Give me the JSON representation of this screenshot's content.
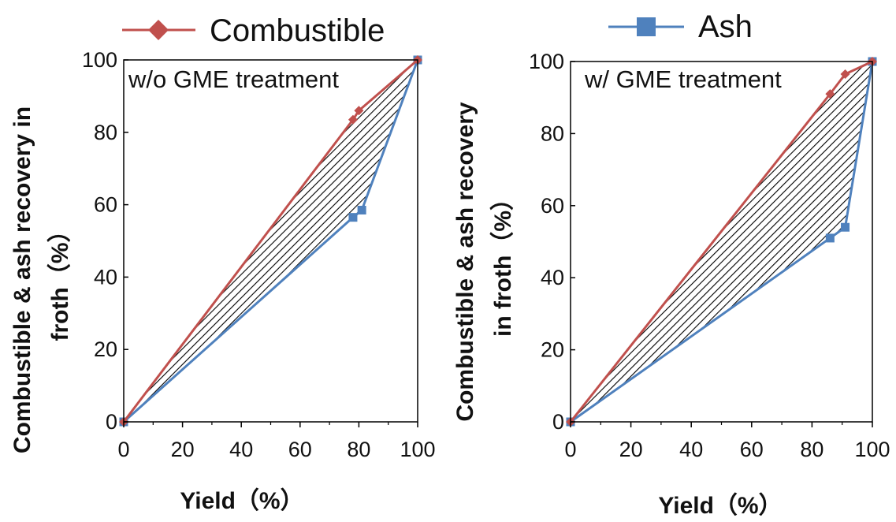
{
  "legend": {
    "combustible_label": "Combustible",
    "ash_label": "Ash"
  },
  "colors": {
    "combustible": "#c0504d",
    "ash": "#4f81bd",
    "axis": "#000000",
    "hatch": "#000000"
  },
  "chart_data": [
    {
      "type": "line",
      "panel_label": "w/o GME treatment",
      "xlabel": "Yield（%）",
      "ylabel_lines": [
        "Combustible & ash recovery in",
        "froth（%）"
      ],
      "xlim": [
        0,
        100
      ],
      "ylim": [
        0,
        100
      ],
      "xticks": [
        0,
        20,
        40,
        60,
        80,
        100
      ],
      "yticks": [
        0,
        20,
        40,
        60,
        80,
        100
      ],
      "grid": false,
      "area_between_series": "hatched",
      "series": [
        {
          "name": "Combustible",
          "marker": "diamond",
          "x": [
            0,
            78,
            80,
            100
          ],
          "y": [
            0,
            83.5,
            86,
            100
          ]
        },
        {
          "name": "Ash",
          "marker": "square",
          "x": [
            0,
            78,
            81,
            100
          ],
          "y": [
            0,
            56.5,
            58.5,
            100
          ]
        }
      ]
    },
    {
      "type": "line",
      "panel_label": "w/ GME treatment",
      "xlabel": "Yield（%）",
      "ylabel_lines": [
        "Combustible & ash recovery",
        "in froth（%）"
      ],
      "xlim": [
        0,
        100
      ],
      "ylim": [
        0,
        100
      ],
      "xticks": [
        0,
        20,
        40,
        60,
        80,
        100
      ],
      "yticks": [
        0,
        20,
        40,
        60,
        80,
        100
      ],
      "grid": false,
      "area_between_series": "hatched",
      "series": [
        {
          "name": "Combustible",
          "marker": "diamond",
          "x": [
            0,
            86,
            91,
            100
          ],
          "y": [
            0,
            91,
            96.5,
            100
          ]
        },
        {
          "name": "Ash",
          "marker": "square",
          "x": [
            0,
            86,
            91,
            100
          ],
          "y": [
            0,
            51,
            54,
            100
          ]
        }
      ]
    }
  ]
}
